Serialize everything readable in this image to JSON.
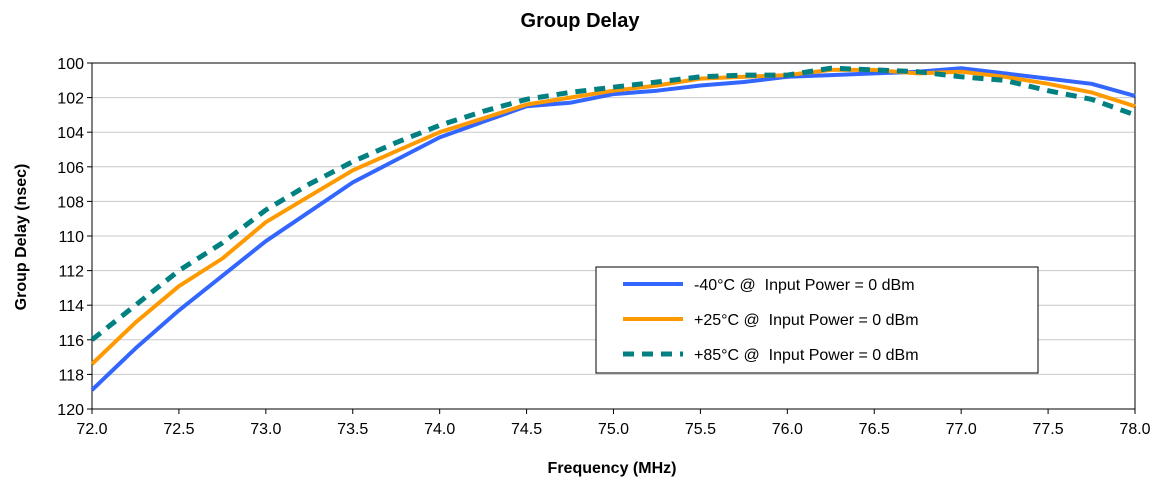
{
  "chart_data": {
    "type": "line",
    "title": "Group Delay",
    "xlabel": "Frequency (MHz)",
    "ylabel": "Group Delay (nsec)",
    "xlim": [
      72.0,
      78.0
    ],
    "ylim": [
      100,
      120
    ],
    "y_inverted": true,
    "grid": true,
    "legend_position": "bottom-right",
    "x_ticks": [
      "72.0",
      "72.5",
      "73.0",
      "73.5",
      "74.0",
      "74.5",
      "75.0",
      "75.5",
      "76.0",
      "76.5",
      "77.0",
      "77.5",
      "78.0"
    ],
    "y_ticks": [
      "100",
      "102",
      "104",
      "106",
      "108",
      "110",
      "112",
      "114",
      "116",
      "118",
      "120"
    ],
    "series": [
      {
        "name": "-40°C @  Input Power = 0 dBm",
        "color": "#3366ff",
        "style": "solid",
        "points": [
          [
            72.0,
            118.9
          ],
          [
            72.25,
            116.5
          ],
          [
            72.5,
            114.3
          ],
          [
            72.75,
            112.3
          ],
          [
            73.0,
            110.3
          ],
          [
            73.25,
            108.6
          ],
          [
            73.5,
            106.9
          ],
          [
            73.75,
            105.6
          ],
          [
            74.0,
            104.3
          ],
          [
            74.25,
            103.4
          ],
          [
            74.5,
            102.5
          ],
          [
            74.75,
            102.3
          ],
          [
            75.0,
            101.8
          ],
          [
            75.25,
            101.6
          ],
          [
            75.5,
            101.3
          ],
          [
            75.75,
            101.1
          ],
          [
            76.0,
            100.8
          ],
          [
            76.25,
            100.7
          ],
          [
            76.5,
            100.6
          ],
          [
            76.75,
            100.5
          ],
          [
            77.0,
            100.3
          ],
          [
            77.25,
            100.6
          ],
          [
            77.5,
            100.9
          ],
          [
            77.75,
            101.2
          ],
          [
            78.0,
            101.9
          ]
        ]
      },
      {
        "name": "+25°C @  Input Power = 0 dBm",
        "color": "#ff9900",
        "style": "solid",
        "points": [
          [
            72.0,
            117.4
          ],
          [
            72.25,
            115.0
          ],
          [
            72.5,
            112.9
          ],
          [
            72.75,
            111.3
          ],
          [
            73.0,
            109.2
          ],
          [
            73.25,
            107.7
          ],
          [
            73.5,
            106.2
          ],
          [
            73.75,
            105.1
          ],
          [
            74.0,
            104.0
          ],
          [
            74.25,
            103.2
          ],
          [
            74.5,
            102.4
          ],
          [
            74.75,
            102.0
          ],
          [
            75.0,
            101.6
          ],
          [
            75.25,
            101.3
          ],
          [
            75.5,
            100.9
          ],
          [
            75.75,
            100.8
          ],
          [
            76.0,
            100.7
          ],
          [
            76.25,
            100.4
          ],
          [
            76.5,
            100.4
          ],
          [
            76.75,
            100.6
          ],
          [
            77.0,
            100.5
          ],
          [
            77.25,
            100.8
          ],
          [
            77.5,
            101.2
          ],
          [
            77.75,
            101.7
          ],
          [
            78.0,
            102.5
          ]
        ]
      },
      {
        "name": "+85°C @  Input Power = 0 dBm",
        "color": "#008080",
        "style": "dashed",
        "points": [
          [
            72.0,
            116.0
          ],
          [
            72.25,
            114.0
          ],
          [
            72.5,
            112.0
          ],
          [
            72.75,
            110.4
          ],
          [
            73.0,
            108.5
          ],
          [
            73.25,
            107.0
          ],
          [
            73.5,
            105.7
          ],
          [
            73.75,
            104.6
          ],
          [
            74.0,
            103.6
          ],
          [
            74.25,
            102.8
          ],
          [
            74.5,
            102.1
          ],
          [
            74.75,
            101.7
          ],
          [
            75.0,
            101.4
          ],
          [
            75.25,
            101.1
          ],
          [
            75.5,
            100.8
          ],
          [
            75.75,
            100.7
          ],
          [
            76.0,
            100.7
          ],
          [
            76.25,
            100.3
          ],
          [
            76.5,
            100.4
          ],
          [
            76.75,
            100.5
          ],
          [
            77.0,
            100.8
          ],
          [
            77.25,
            101.0
          ],
          [
            77.5,
            101.6
          ],
          [
            77.75,
            102.1
          ],
          [
            78.0,
            103.0
          ]
        ]
      }
    ]
  }
}
